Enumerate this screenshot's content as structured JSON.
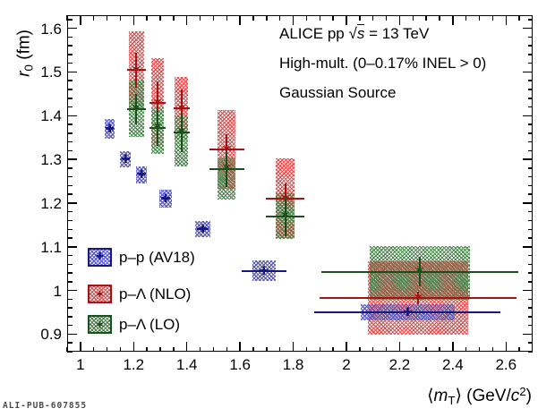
{
  "watermark": "ALI-PUB-607855",
  "chart_data": {
    "type": "scatter",
    "annotations": [
      {
        "parts": [
          {
            "t": "ALICE pp "
          },
          {
            "t": "√"
          },
          {
            "t": "s",
            "style": "italic-overline"
          },
          {
            "t": " = 13 TeV"
          }
        ]
      },
      {
        "parts": [
          {
            "t": "High-mult. (0–0.17% INEL > 0)"
          }
        ]
      },
      {
        "parts": [
          {
            "t": "Gaussian Source"
          }
        ]
      }
    ],
    "xlabel_parts": [
      {
        "t": "⟨"
      },
      {
        "t": "m",
        "style": "italic"
      },
      {
        "t": "T",
        "style": "sub"
      },
      {
        "t": "⟩ (GeV/"
      },
      {
        "t": "c",
        "style": "italic"
      },
      {
        "t": "2",
        "style": "sup"
      },
      {
        "t": ")"
      }
    ],
    "ylabel_parts": [
      {
        "t": "r",
        "style": "italic"
      },
      {
        "t": "0",
        "style": "sub"
      },
      {
        "t": " (fm)"
      }
    ],
    "xlim": [
      0.95,
      2.7
    ],
    "ylim": [
      0.86,
      1.63
    ],
    "grid": false,
    "legend_position": "lower-left",
    "x_ticks": {
      "major_start": 1.0,
      "major_step": 0.2,
      "major_end": 2.6,
      "minor_step": 0.05,
      "labels": [
        "1",
        "1.2",
        "1.4",
        "1.6",
        "1.8",
        "2",
        "2.2",
        "2.4",
        "2.6"
      ]
    },
    "y_ticks": {
      "major_start": 0.9,
      "major_step": 0.1,
      "major_end": 1.6,
      "minor_step": 0.02,
      "labels": [
        "0.9",
        "1",
        "1.1",
        "1.2",
        "1.3",
        "1.4",
        "1.5",
        "1.6"
      ]
    },
    "series": [
      {
        "key": "pp-av18",
        "name": "p–p (AV18)",
        "line_color": "#17177f",
        "band_color": "#5b5bc4",
        "marker_glyph": "✚",
        "marker_size": 13,
        "points": [
          {
            "x": 1.11,
            "y": 1.37,
            "ex": 0.012,
            "ey": 0.008,
            "bw": 0.02,
            "box": [
              1.347,
              1.393
            ]
          },
          {
            "x": 1.17,
            "y": 1.3,
            "ex": 0.012,
            "ey": 0.008,
            "bw": 0.02,
            "box": [
              1.281,
              1.319
            ]
          },
          {
            "x": 1.23,
            "y": 1.265,
            "ex": 0.012,
            "ey": 0.008,
            "bw": 0.02,
            "box": [
              1.246,
              1.284
            ]
          },
          {
            "x": 1.32,
            "y": 1.21,
            "ex": 0.018,
            "ey": 0.008,
            "bw": 0.025,
            "box": [
              1.19,
              1.23
            ]
          },
          {
            "x": 1.46,
            "y": 1.14,
            "ex": 0.022,
            "ey": 0.008,
            "bw": 0.028,
            "box": [
              1.122,
              1.158
            ]
          },
          {
            "x": 1.69,
            "y": 1.045,
            "ex": 0.085,
            "ey": 0.008,
            "bw": 0.045,
            "box": [
              1.021,
              1.069
            ]
          },
          {
            "x": 2.23,
            "y": 0.95,
            "ex": 0.35,
            "ey": 0.008,
            "bw": 0.176,
            "box": [
              0.931,
              0.969
            ]
          }
        ]
      },
      {
        "key": "pL-nlo",
        "name": "p–Λ (NLO)",
        "line_color": "#a31414",
        "band_color": "#e05050",
        "marker_glyph": "✶",
        "marker_size": 17,
        "points": [
          {
            "x": 1.21,
            "y": 1.505,
            "ex": 0.035,
            "ey": 0.04,
            "bw": 0.029,
            "box": [
              1.415,
              1.594
            ]
          },
          {
            "x": 1.29,
            "y": 1.43,
            "ex": 0.03,
            "ey": 0.048,
            "bw": 0.025,
            "box": [
              1.33,
              1.531
            ]
          },
          {
            "x": 1.38,
            "y": 1.418,
            "ex": 0.03,
            "ey": 0.042,
            "bw": 0.025,
            "box": [
              1.345,
              1.488
            ]
          },
          {
            "x": 1.55,
            "y": 1.323,
            "ex": 0.065,
            "ey": 0.035,
            "bw": 0.034,
            "box": [
              1.233,
              1.412
            ]
          },
          {
            "x": 1.77,
            "y": 1.21,
            "ex": 0.072,
            "ey": 0.035,
            "bw": 0.036,
            "box": [
              1.12,
              1.302
            ]
          },
          {
            "x": 2.27,
            "y": 0.983,
            "ex": 0.37,
            "ey": 0.015,
            "bw": 0.188,
            "box": [
              0.899,
              1.066
            ]
          }
        ]
      },
      {
        "key": "pL-lo",
        "name": "p–Λ (LO)",
        "line_color": "#1c4f1c",
        "band_color": "#4e8550",
        "marker_glyph": "✶",
        "marker_size": 16,
        "points": [
          {
            "x": 1.21,
            "y": 1.415,
            "ex": 0.035,
            "ey": 0.035,
            "bw": 0.029,
            "box": [
              1.351,
              1.481
            ]
          },
          {
            "x": 1.29,
            "y": 1.371,
            "ex": 0.03,
            "ey": 0.04,
            "bw": 0.025,
            "box": [
              1.313,
              1.419
            ]
          },
          {
            "x": 1.38,
            "y": 1.362,
            "ex": 0.03,
            "ey": 0.045,
            "bw": 0.025,
            "box": [
              1.283,
              1.4
            ]
          },
          {
            "x": 1.55,
            "y": 1.277,
            "ex": 0.065,
            "ey": 0.04,
            "bw": 0.034,
            "box": [
              1.209,
              1.304
            ]
          },
          {
            "x": 1.77,
            "y": 1.17,
            "ex": 0.072,
            "ey": 0.045,
            "bw": 0.036,
            "box": [
              1.117,
              1.222
            ]
          },
          {
            "x": 2.275,
            "y": 1.043,
            "ex": 0.37,
            "ey": 0.034,
            "bw": 0.188,
            "box": [
              0.978,
              1.102
            ]
          }
        ]
      }
    ]
  }
}
